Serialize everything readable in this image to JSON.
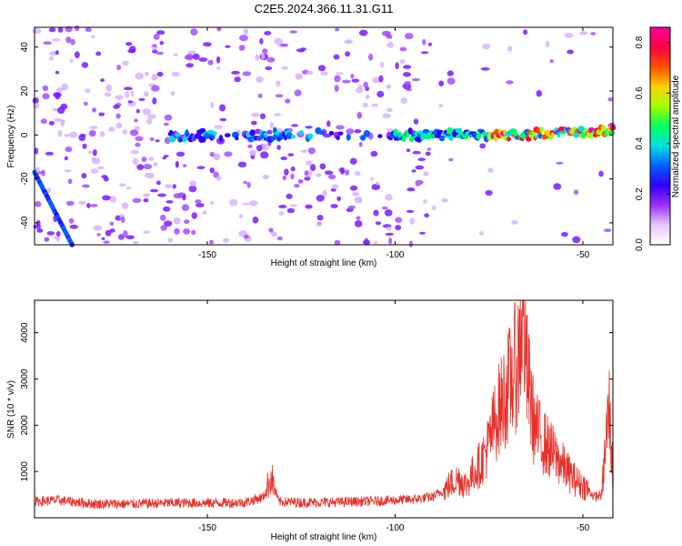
{
  "title": "C2E5.2024.366.11.31.G11",
  "chart_data": [
    {
      "type": "heatmap",
      "xlabel": "Height of straight line (km)",
      "ylabel": "Frequency (Hz)",
      "xlim": [
        -196,
        -42
      ],
      "ylim": [
        -50,
        49
      ],
      "xticks": [
        -150,
        -100,
        -50
      ],
      "xtick_labels": [
        "-150",
        "-100",
        "-50"
      ],
      "yticks": [
        -40,
        -20,
        0,
        20,
        40
      ],
      "ytick_labels": [
        "-40",
        "-20",
        "0",
        "20",
        "40"
      ],
      "colorbar": {
        "label": "Normalized spectral amplitude",
        "range": [
          0,
          0.86
        ],
        "ticks": [
          0,
          0.2,
          0.4,
          0.6,
          0.8
        ],
        "tick_labels": [
          "0.0",
          "0.2",
          "0.4",
          "0.6",
          "0.8"
        ],
        "colormap": [
          "#ffffff",
          "#e6c8ff",
          "#9b30ff",
          "#3000ff",
          "#0060ff",
          "#00e0e0",
          "#00ff60",
          "#a0ff00",
          "#ffd000",
          "#ff5000",
          "#ff0040",
          "#ff00a0"
        ]
      },
      "features": {
        "doppler_line": {
          "x": [
            -196,
            -186
          ],
          "y": [
            -17,
            -50
          ],
          "amplitude": 0.3
        },
        "carrier_band": {
          "y": 0,
          "x_start": -160,
          "x_end": -42,
          "amplitude_max": 0.86
        }
      }
    },
    {
      "type": "line",
      "xlabel": "Height of straight line (km)",
      "ylabel": "SNR (10 * v/v)",
      "xlim": [
        -196,
        -42
      ],
      "ylim": [
        0,
        4700
      ],
      "xticks": [
        -150,
        -100,
        -50
      ],
      "xtick_labels": [
        "-150",
        "-100",
        "-50"
      ],
      "yticks": [
        1000,
        2000,
        3000,
        4000
      ],
      "ytick_labels": [
        "1000",
        "2000",
        "3000",
        "4000"
      ],
      "color": "#e8302a",
      "x": [
        -196,
        -190,
        -180,
        -170,
        -160,
        -150,
        -140,
        -135,
        -133,
        -131,
        -125,
        -115,
        -105,
        -95,
        -90,
        -87,
        -85,
        -83,
        -81,
        -79,
        -77,
        -75,
        -73,
        -71,
        -69,
        -67,
        -66,
        -65,
        -64,
        -63,
        -61,
        -59,
        -57,
        -55,
        -53,
        -51,
        -49,
        -47,
        -45,
        -44,
        -43,
        -42
      ],
      "y": [
        350,
        380,
        300,
        300,
        320,
        320,
        330,
        450,
        900,
        350,
        330,
        340,
        360,
        400,
        450,
        600,
        750,
        850,
        700,
        1000,
        1200,
        1600,
        2200,
        2600,
        3000,
        3500,
        4600,
        3200,
        2600,
        2000,
        1700,
        1500,
        1300,
        1100,
        900,
        750,
        650,
        450,
        500,
        1500,
        2400,
        900
      ]
    }
  ]
}
